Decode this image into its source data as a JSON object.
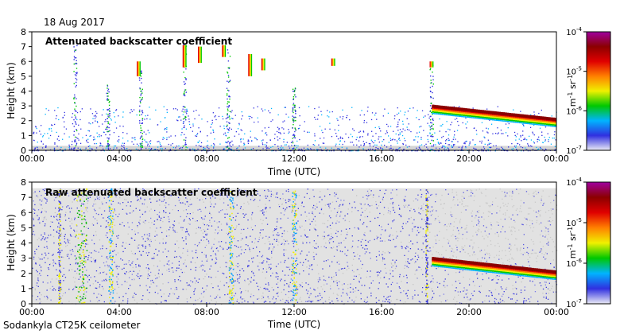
{
  "figure": {
    "date": "18 Aug 2017",
    "footer": "Sodankyla CT25K ceilometer"
  },
  "colorbar": {
    "tick_labels": [
      "10",
      "10",
      "10",
      "10"
    ],
    "exponents": [
      "-4",
      "-5",
      "-6",
      "-7"
    ],
    "unit_main": "m",
    "unit_exp1": "-1",
    "unit_sr": "sr",
    "unit_exp2": "-1",
    "colors": [
      "#ebebf5",
      "#3030e0",
      "#00b4ff",
      "#00c800",
      "#f0f000",
      "#ff8000",
      "#e00000",
      "#8b0000",
      "#a000a0"
    ]
  },
  "chart_data": [
    {
      "type": "heatmap",
      "title": "Attenuated backscatter coefficient",
      "xlabel": "Time (UTC)",
      "ylabel": "Height (km)",
      "xticks": [
        "00:00",
        "04:00",
        "08:00",
        "12:00",
        "16:00",
        "20:00",
        "00:00"
      ],
      "yticks": [
        "0",
        "1",
        "2",
        "3",
        "4",
        "5",
        "6",
        "7",
        "8"
      ],
      "xlim_hours": [
        0,
        24
      ],
      "ylim_km": [
        0,
        8
      ],
      "colorbar_range": [
        1e-07,
        0.0001
      ],
      "features": [
        {
          "name": "cloud-layer",
          "from_hour": 18.3,
          "to_hour": 24,
          "height_km_start": 3.0,
          "height_km_end": 2.1
        },
        {
          "name": "high-cloud-streaks",
          "from_hour": 6.5,
          "to_hour": 10,
          "height_km": [
            5.0,
            7.2
          ]
        },
        {
          "name": "near-surface-noise",
          "from_hour": 0,
          "to_hour": 24,
          "height_km": [
            0,
            0.3
          ]
        }
      ]
    },
    {
      "type": "heatmap",
      "title": "Raw attenuated backscatter coefficient",
      "xlabel": "Time (UTC)",
      "ylabel": "Height (km)",
      "xticks": [
        "00:00",
        "04:00",
        "08:00",
        "12:00",
        "16:00",
        "20:00",
        "00:00"
      ],
      "yticks": [
        "0",
        "1",
        "2",
        "3",
        "4",
        "5",
        "6",
        "7",
        "8"
      ],
      "xlim_hours": [
        0,
        24
      ],
      "ylim_km": [
        0,
        8
      ],
      "colorbar_range": [
        1e-07,
        0.0001
      ],
      "features": [
        {
          "name": "cloud-layer",
          "from_hour": 18.3,
          "to_hour": 24,
          "height_km_start": 3.0,
          "height_km_end": 2.1
        },
        {
          "name": "noise-background",
          "from_hour": 0,
          "to_hour": 24,
          "height_km": [
            0,
            7.6
          ]
        },
        {
          "name": "strong-column",
          "from_hour": 2.0,
          "to_hour": 2.5,
          "height_km": [
            0,
            7.6
          ]
        }
      ]
    }
  ]
}
